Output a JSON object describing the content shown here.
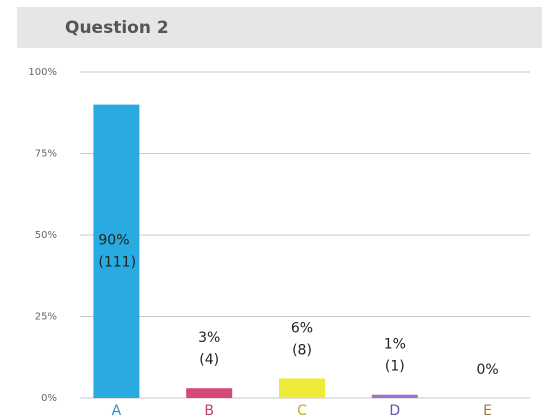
{
  "chart_data": {
    "type": "bar",
    "title": "Question 2",
    "categories": [
      "A",
      "B",
      "C",
      "D",
      "E"
    ],
    "values": [
      90,
      3,
      6,
      1,
      0
    ],
    "value_labels": [
      "90%",
      "3%",
      "6%",
      "1%",
      "0%"
    ],
    "count_labels": [
      "(111)",
      "(4)",
      "(8)",
      "(1)",
      null
    ],
    "colors": [
      "#29abe2",
      "#d4487a",
      "#eeea3a",
      "#9b72cf",
      "#a8844a"
    ],
    "label_colors": [
      "#2a8fc8",
      "#c0406e",
      "#b8b020",
      "#5a5aa8",
      "#a07a40"
    ],
    "ylim": [
      0,
      100
    ],
    "yticks": [
      {
        "value": 0,
        "label": "0%"
      },
      {
        "value": 25,
        "label": "25%"
      },
      {
        "value": 50,
        "label": "50%"
      },
      {
        "value": 75,
        "label": "75%"
      },
      {
        "value": 100,
        "label": "100%"
      }
    ],
    "grid": true
  }
}
